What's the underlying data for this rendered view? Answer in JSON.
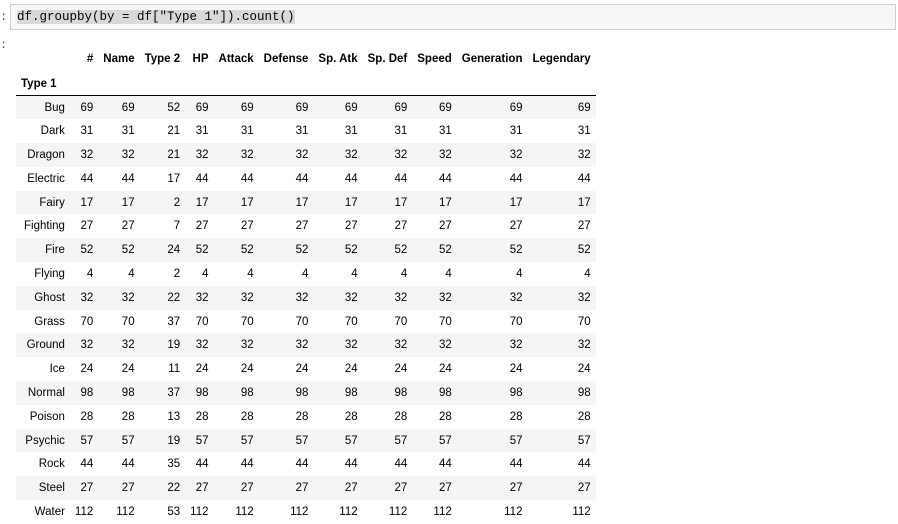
{
  "input": {
    "prompt": ":",
    "code": "df.groupby(by = df[\"Type 1\"]).count()"
  },
  "output": {
    "prompt": ":",
    "index_name": "Type 1",
    "columns": [
      "#",
      "Name",
      "Type 2",
      "HP",
      "Attack",
      "Defense",
      "Sp. Atk",
      "Sp. Def",
      "Speed",
      "Generation",
      "Legendary"
    ],
    "rows": [
      {
        "label": "Bug",
        "values": [
          "69",
          "69",
          "52",
          "69",
          "69",
          "69",
          "69",
          "69",
          "69",
          "69",
          "69"
        ]
      },
      {
        "label": "Dark",
        "values": [
          "31",
          "31",
          "21",
          "31",
          "31",
          "31",
          "31",
          "31",
          "31",
          "31",
          "31"
        ]
      },
      {
        "label": "Dragon",
        "values": [
          "32",
          "32",
          "21",
          "32",
          "32",
          "32",
          "32",
          "32",
          "32",
          "32",
          "32"
        ]
      },
      {
        "label": "Electric",
        "values": [
          "44",
          "44",
          "17",
          "44",
          "44",
          "44",
          "44",
          "44",
          "44",
          "44",
          "44"
        ]
      },
      {
        "label": "Fairy",
        "values": [
          "17",
          "17",
          "2",
          "17",
          "17",
          "17",
          "17",
          "17",
          "17",
          "17",
          "17"
        ]
      },
      {
        "label": "Fighting",
        "values": [
          "27",
          "27",
          "7",
          "27",
          "27",
          "27",
          "27",
          "27",
          "27",
          "27",
          "27"
        ]
      },
      {
        "label": "Fire",
        "values": [
          "52",
          "52",
          "24",
          "52",
          "52",
          "52",
          "52",
          "52",
          "52",
          "52",
          "52"
        ]
      },
      {
        "label": "Flying",
        "values": [
          "4",
          "4",
          "2",
          "4",
          "4",
          "4",
          "4",
          "4",
          "4",
          "4",
          "4"
        ]
      },
      {
        "label": "Ghost",
        "values": [
          "32",
          "32",
          "22",
          "32",
          "32",
          "32",
          "32",
          "32",
          "32",
          "32",
          "32"
        ]
      },
      {
        "label": "Grass",
        "values": [
          "70",
          "70",
          "37",
          "70",
          "70",
          "70",
          "70",
          "70",
          "70",
          "70",
          "70"
        ]
      },
      {
        "label": "Ground",
        "values": [
          "32",
          "32",
          "19",
          "32",
          "32",
          "32",
          "32",
          "32",
          "32",
          "32",
          "32"
        ]
      },
      {
        "label": "Ice",
        "values": [
          "24",
          "24",
          "11",
          "24",
          "24",
          "24",
          "24",
          "24",
          "24",
          "24",
          "24"
        ]
      },
      {
        "label": "Normal",
        "values": [
          "98",
          "98",
          "37",
          "98",
          "98",
          "98",
          "98",
          "98",
          "98",
          "98",
          "98"
        ]
      },
      {
        "label": "Poison",
        "values": [
          "28",
          "28",
          "13",
          "28",
          "28",
          "28",
          "28",
          "28",
          "28",
          "28",
          "28"
        ]
      },
      {
        "label": "Psychic",
        "values": [
          "57",
          "57",
          "19",
          "57",
          "57",
          "57",
          "57",
          "57",
          "57",
          "57",
          "57"
        ]
      },
      {
        "label": "Rock",
        "values": [
          "44",
          "44",
          "35",
          "44",
          "44",
          "44",
          "44",
          "44",
          "44",
          "44",
          "44"
        ]
      },
      {
        "label": "Steel",
        "values": [
          "27",
          "27",
          "22",
          "27",
          "27",
          "27",
          "27",
          "27",
          "27",
          "27",
          "27"
        ]
      },
      {
        "label": "Water",
        "values": [
          "112",
          "112",
          "53",
          "112",
          "112",
          "112",
          "112",
          "112",
          "112",
          "112",
          "112"
        ]
      }
    ]
  }
}
